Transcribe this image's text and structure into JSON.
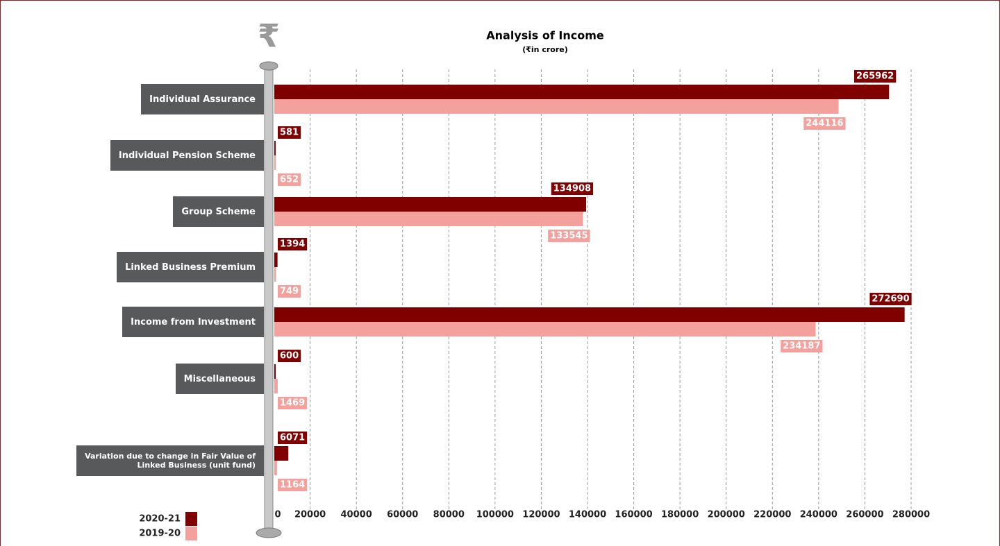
{
  "chart_data": {
    "type": "hbar",
    "title": "Analysis of Income",
    "subtitle": "(₹in crore)",
    "icon": "₹",
    "categories": [
      "Individual Assurance",
      "Individual Pension Scheme",
      "Group Scheme",
      "Linked Business Premium",
      "Income from Investment",
      "Miscellaneous",
      "Variation due to change in Fair Value of Linked Business (unit fund)"
    ],
    "series": [
      {
        "name": "2020-21",
        "color": "#800000",
        "values": [
          265962,
          581,
          134908,
          1394,
          272690,
          600,
          6071
        ]
      },
      {
        "name": "2019-20",
        "color": "#f4a09c",
        "values": [
          244116,
          652,
          133545,
          749,
          234187,
          1469,
          1164
        ]
      }
    ],
    "xlim": [
      0,
      280000
    ],
    "xticks": [
      0,
      20000,
      40000,
      60000,
      80000,
      100000,
      120000,
      140000,
      160000,
      180000,
      200000,
      220000,
      240000,
      260000,
      280000
    ],
    "grid": true
  }
}
